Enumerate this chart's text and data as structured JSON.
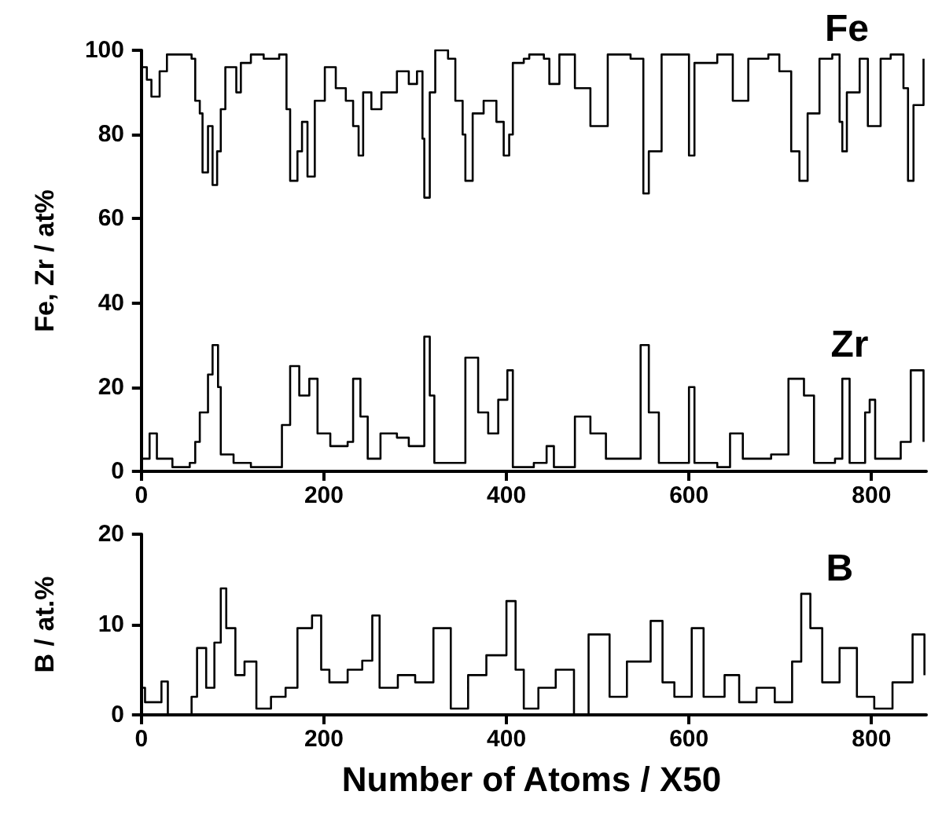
{
  "chart_data": [
    {
      "type": "step",
      "ylabel": "Fe, Zr / at%",
      "xlim": [
        -5,
        860
      ],
      "xticks": [
        0,
        200,
        400,
        600,
        800
      ],
      "ylim": [
        0,
        100
      ],
      "yticks": [
        0,
        20,
        40,
        60,
        80,
        100
      ],
      "grid": false,
      "legend": false,
      "marker": "none",
      "line_style": "solid",
      "series": [
        {
          "name": "Fe",
          "color": "#000000",
          "x": [
            0,
            6,
            11,
            20,
            28,
            45,
            55,
            59,
            64,
            67,
            73,
            78,
            83,
            87,
            92,
            104,
            109,
            120,
            134,
            151,
            159,
            163,
            171,
            176,
            182,
            190,
            201,
            213,
            224,
            232,
            238,
            243,
            252,
            263,
            280,
            293,
            302,
            308,
            310,
            316,
            322,
            336,
            344,
            352,
            355,
            363,
            375,
            389,
            397,
            403,
            407,
            419,
            425,
            441,
            447,
            458,
            475,
            492,
            511,
            536,
            550,
            556,
            570,
            592,
            600,
            606,
            631,
            648,
            665,
            687,
            699,
            712,
            721,
            730,
            743,
            757,
            765,
            768,
            773,
            787,
            796,
            810,
            821,
            835,
            840,
            846,
            857
          ],
          "values": [
            96,
            93,
            89,
            95,
            99,
            99,
            98,
            88,
            85,
            71,
            82,
            68,
            76,
            86,
            96,
            90,
            97,
            99,
            98,
            99,
            86,
            69,
            76,
            83,
            70,
            88,
            96,
            91,
            88,
            82,
            75,
            90,
            86,
            90,
            95,
            92,
            95,
            79,
            65,
            90,
            100,
            98,
            88,
            80,
            69,
            85,
            88,
            83,
            75,
            80,
            97,
            98,
            99,
            98,
            92,
            99,
            91,
            82,
            99,
            98,
            66,
            76,
            99,
            99,
            75,
            97,
            99,
            88,
            98,
            99,
            95,
            76,
            69,
            85,
            98,
            99,
            83,
            76,
            90,
            98,
            82,
            98,
            99,
            91,
            69,
            87,
            98
          ]
        },
        {
          "name": "Zr",
          "color": "#000000",
          "x": [
            0,
            9,
            17,
            34,
            53,
            59,
            64,
            73,
            78,
            84,
            87,
            101,
            120,
            145,
            154,
            163,
            173,
            184,
            193,
            207,
            226,
            232,
            240,
            248,
            262,
            280,
            293,
            302,
            310,
            316,
            321,
            344,
            355,
            369,
            380,
            391,
            401,
            407,
            419,
            430,
            444,
            452,
            469,
            475,
            492,
            509,
            536,
            547,
            556,
            567,
            592,
            600,
            606,
            631,
            645,
            659,
            690,
            709,
            726,
            737,
            760,
            768,
            776,
            793,
            798,
            804,
            832,
            843,
            857
          ],
          "values": [
            3,
            9,
            3,
            1,
            2,
            7,
            14,
            23,
            30,
            20,
            4,
            2,
            1,
            1,
            11,
            25,
            18,
            22,
            9,
            6,
            7,
            22,
            13,
            3,
            9,
            8,
            6,
            6,
            32,
            18,
            2,
            2,
            27,
            14,
            9,
            17,
            24,
            1,
            1,
            2,
            6,
            1,
            1,
            13,
            9,
            3,
            3,
            30,
            14,
            2,
            2,
            20,
            2,
            1,
            9,
            3,
            4,
            22,
            18,
            2,
            3,
            22,
            2,
            14,
            17,
            3,
            7,
            24,
            7
          ]
        }
      ]
    },
    {
      "type": "step",
      "xlabel": "Number of Atoms / X50",
      "ylabel": "B / at.%",
      "xlim": [
        -5,
        860
      ],
      "xticks": [
        0,
        200,
        400,
        600,
        800
      ],
      "ylim": [
        0,
        20
      ],
      "yticks": [
        0,
        10,
        20
      ],
      "grid": false,
      "legend": false,
      "marker": "none",
      "line_style": "solid",
      "series": [
        {
          "name": "B",
          "color": "#000000",
          "x": [
            0,
            4,
            22,
            29,
            45,
            55,
            61,
            71,
            80,
            87,
            93,
            103,
            113,
            126,
            142,
            158,
            171,
            187,
            197,
            206,
            226,
            242,
            253,
            261,
            281,
            300,
            320,
            339,
            358,
            378,
            400,
            410,
            419,
            435,
            454,
            474,
            490,
            513,
            532,
            558,
            571,
            584,
            603,
            616,
            639,
            655,
            674,
            694,
            713,
            723,
            733,
            746,
            765,
            784,
            803,
            823,
            845,
            858
          ],
          "values": [
            3,
            1.4,
            3.7,
            0,
            0,
            2,
            7.4,
            3,
            8,
            14,
            9.6,
            4.4,
            5.9,
            0.7,
            2,
            3,
            9.6,
            11,
            5,
            3.6,
            5,
            6,
            11,
            3,
            4.4,
            3.6,
            9.6,
            0.7,
            4.4,
            6.6,
            12.6,
            5,
            0.7,
            3,
            5,
            0,
            8.9,
            2,
            5.9,
            10.4,
            3.6,
            2,
            9.6,
            2,
            4.4,
            1.4,
            3,
            1.4,
            5.9,
            13.4,
            9.6,
            3.6,
            7.4,
            2,
            0.7,
            3.6,
            8.9,
            4.4
          ]
        }
      ]
    }
  ]
}
